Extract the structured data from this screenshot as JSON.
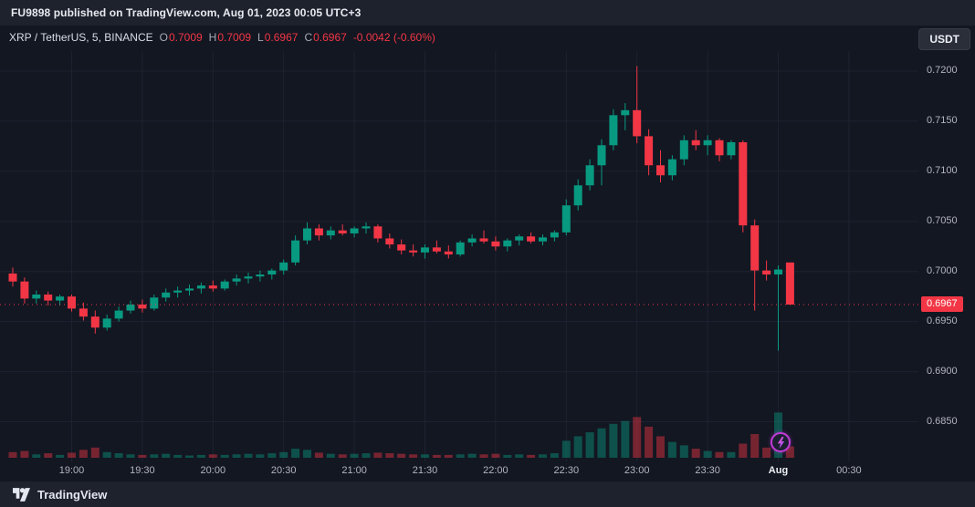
{
  "header": {
    "attribution": "FU9898 published on TradingView.com, Aug 01, 2023 00:05 UTC+3"
  },
  "legend": {
    "symbol": "XRP / TetherUS, 5, BINANCE",
    "o_label": "O",
    "o_value": "0.7009",
    "h_label": "H",
    "h_value": "0.7009",
    "l_label": "L",
    "l_value": "0.6967",
    "c_label": "C",
    "c_value": "0.6967",
    "change": "-0.0042 (-0.60%)"
  },
  "currency_button": "USDT",
  "footer": {
    "brand": "TradingView"
  },
  "colors": {
    "up": "#089981",
    "down": "#f23645",
    "grid": "#1e2230",
    "bg": "#131722",
    "axis_text": "#b2b5be"
  },
  "last_price": {
    "value": 0.6967,
    "label": "0.6967"
  },
  "sticker": {
    "icon": "lightning-icon"
  },
  "chart_data": {
    "type": "candlestick",
    "title": "XRP / TetherUS, 5, BINANCE",
    "symbol": "XRP/USDT",
    "interval": "5m",
    "exchange": "BINANCE",
    "legend_position": "top-left",
    "grid": true,
    "y_range": {
      "top": 0.722,
      "bottom": 0.6815
    },
    "y_ticks": [
      {
        "label": "0.7200",
        "value": 0.72
      },
      {
        "label": "0.7150",
        "value": 0.715
      },
      {
        "label": "0.7100",
        "value": 0.71
      },
      {
        "label": "0.7050",
        "value": 0.705
      },
      {
        "label": "0.7000",
        "value": 0.7
      },
      {
        "label": "0.6950",
        "value": 0.695
      },
      {
        "label": "0.6900",
        "value": 0.69
      },
      {
        "label": "0.6850",
        "value": 0.685
      }
    ],
    "x_ticks": [
      {
        "label": "19:00",
        "slot": 5
      },
      {
        "label": "19:30",
        "slot": 11
      },
      {
        "label": "20:00",
        "slot": 17
      },
      {
        "label": "20:30",
        "slot": 23
      },
      {
        "label": "21:00",
        "slot": 29
      },
      {
        "label": "21:30",
        "slot": 35
      },
      {
        "label": "22:00",
        "slot": 41
      },
      {
        "label": "22:30",
        "slot": 47
      },
      {
        "label": "23:00",
        "slot": 53
      },
      {
        "label": "23:30",
        "slot": 59
      },
      {
        "label": "Aug",
        "slot": 65,
        "major": true
      },
      {
        "label": "00:30",
        "slot": 71
      }
    ],
    "volume_max": 100,
    "candles": [
      [
        "18:35",
        0.6998,
        0.7004,
        0.6985,
        0.699,
        10
      ],
      [
        "18:40",
        0.699,
        0.6994,
        0.6968,
        0.6973,
        12
      ],
      [
        "18:45",
        0.6973,
        0.6981,
        0.6968,
        0.6977,
        6
      ],
      [
        "18:50",
        0.6977,
        0.698,
        0.6966,
        0.6971,
        8
      ],
      [
        "18:55",
        0.6971,
        0.6977,
        0.6966,
        0.6975,
        5
      ],
      [
        "19:00",
        0.6975,
        0.6977,
        0.696,
        0.6963,
        9
      ],
      [
        "19:05",
        0.6963,
        0.6969,
        0.6951,
        0.6955,
        14
      ],
      [
        "19:10",
        0.6955,
        0.6961,
        0.6938,
        0.6944,
        18
      ],
      [
        "19:15",
        0.6944,
        0.6957,
        0.6941,
        0.6953,
        10
      ],
      [
        "19:20",
        0.6953,
        0.6965,
        0.695,
        0.6961,
        8
      ],
      [
        "19:25",
        0.6961,
        0.6971,
        0.6958,
        0.6967,
        6
      ],
      [
        "19:30",
        0.6967,
        0.6972,
        0.6959,
        0.6963,
        5
      ],
      [
        "19:35",
        0.6963,
        0.6977,
        0.6961,
        0.6974,
        6
      ],
      [
        "19:40",
        0.6974,
        0.6983,
        0.697,
        0.6979,
        7
      ],
      [
        "19:45",
        0.6979,
        0.6985,
        0.6974,
        0.6981,
        5
      ],
      [
        "19:50",
        0.6981,
        0.6987,
        0.6976,
        0.6983,
        4
      ],
      [
        "19:55",
        0.6983,
        0.6989,
        0.6978,
        0.6986,
        5
      ],
      [
        "20:00",
        0.6986,
        0.6991,
        0.698,
        0.6983,
        6
      ],
      [
        "20:05",
        0.6983,
        0.6992,
        0.6981,
        0.699,
        5
      ],
      [
        "20:10",
        0.699,
        0.6997,
        0.6986,
        0.6993,
        6
      ],
      [
        "20:15",
        0.6993,
        0.6999,
        0.6988,
        0.6995,
        7
      ],
      [
        "20:20",
        0.6995,
        0.7001,
        0.699,
        0.6997,
        6
      ],
      [
        "20:25",
        0.6997,
        0.7003,
        0.6992,
        0.7001,
        8
      ],
      [
        "20:30",
        0.7001,
        0.7012,
        0.6997,
        0.7009,
        10
      ],
      [
        "20:35",
        0.7009,
        0.7036,
        0.7006,
        0.7031,
        16
      ],
      [
        "20:40",
        0.7031,
        0.7049,
        0.7027,
        0.7043,
        14
      ],
      [
        "20:45",
        0.7043,
        0.7047,
        0.7031,
        0.7036,
        9
      ],
      [
        "20:50",
        0.7036,
        0.7045,
        0.7032,
        0.7041,
        7
      ],
      [
        "20:55",
        0.7041,
        0.7047,
        0.7036,
        0.7038,
        6
      ],
      [
        "21:00",
        0.7038,
        0.7045,
        0.7034,
        0.7043,
        7
      ],
      [
        "21:05",
        0.7043,
        0.7049,
        0.7038,
        0.7045,
        8
      ],
      [
        "21:10",
        0.7045,
        0.7047,
        0.7029,
        0.7033,
        9
      ],
      [
        "21:15",
        0.7033,
        0.7038,
        0.7023,
        0.7027,
        8
      ],
      [
        "21:20",
        0.7027,
        0.7032,
        0.7017,
        0.7021,
        7
      ],
      [
        "21:25",
        0.7021,
        0.7027,
        0.7015,
        0.7019,
        6
      ],
      [
        "21:30",
        0.7019,
        0.7027,
        0.7013,
        0.7024,
        6
      ],
      [
        "21:35",
        0.7024,
        0.7031,
        0.7018,
        0.702,
        5
      ],
      [
        "21:40",
        0.702,
        0.7026,
        0.7013,
        0.7017,
        5
      ],
      [
        "21:45",
        0.7017,
        0.7031,
        0.7015,
        0.7029,
        6
      ],
      [
        "21:50",
        0.7029,
        0.7037,
        0.7025,
        0.7033,
        7
      ],
      [
        "21:55",
        0.7033,
        0.7041,
        0.7028,
        0.703,
        6
      ],
      [
        "22:00",
        0.703,
        0.7035,
        0.7021,
        0.7025,
        7
      ],
      [
        "22:05",
        0.7025,
        0.7033,
        0.702,
        0.7031,
        5
      ],
      [
        "22:10",
        0.7031,
        0.7037,
        0.7026,
        0.7035,
        6
      ],
      [
        "22:15",
        0.7035,
        0.7039,
        0.7028,
        0.703,
        5
      ],
      [
        "22:20",
        0.703,
        0.7037,
        0.7026,
        0.7034,
        6
      ],
      [
        "22:25",
        0.7034,
        0.7041,
        0.703,
        0.7039,
        8
      ],
      [
        "22:30",
        0.7039,
        0.7072,
        0.7036,
        0.7066,
        30
      ],
      [
        "22:35",
        0.7066,
        0.7092,
        0.7061,
        0.7086,
        38
      ],
      [
        "22:40",
        0.7086,
        0.7112,
        0.7081,
        0.7106,
        45
      ],
      [
        "22:45",
        0.7106,
        0.7132,
        0.7086,
        0.7126,
        52
      ],
      [
        "22:50",
        0.7126,
        0.7162,
        0.7121,
        0.7156,
        60
      ],
      [
        "22:55",
        0.7156,
        0.7168,
        0.7141,
        0.7161,
        65
      ],
      [
        "23:00",
        0.7161,
        0.7205,
        0.7128,
        0.7135,
        72
      ],
      [
        "23:05",
        0.7135,
        0.7142,
        0.7096,
        0.7106,
        55
      ],
      [
        "23:10",
        0.7106,
        0.7121,
        0.7089,
        0.7096,
        38
      ],
      [
        "23:15",
        0.7096,
        0.7116,
        0.7091,
        0.7112,
        28
      ],
      [
        "23:20",
        0.7112,
        0.7136,
        0.7106,
        0.7131,
        22
      ],
      [
        "23:25",
        0.7131,
        0.7141,
        0.7121,
        0.7126,
        16
      ],
      [
        "23:30",
        0.7126,
        0.7136,
        0.7116,
        0.7131,
        12
      ],
      [
        "23:35",
        0.7131,
        0.7133,
        0.711,
        0.7116,
        10
      ],
      [
        "23:40",
        0.7116,
        0.7131,
        0.7112,
        0.7129,
        10
      ],
      [
        "23:45",
        0.7129,
        0.7131,
        0.7039,
        0.7046,
        25
      ],
      [
        "23:50",
        0.7046,
        0.7052,
        0.6961,
        0.7001,
        42
      ],
      [
        "23:55",
        0.7001,
        0.7011,
        0.6991,
        0.6997,
        18
      ],
      [
        "00:00",
        0.6997,
        0.7006,
        0.6921,
        0.7002,
        80
      ],
      [
        "00:05",
        0.7009,
        0.7009,
        0.6967,
        0.6967,
        20
      ]
    ]
  }
}
